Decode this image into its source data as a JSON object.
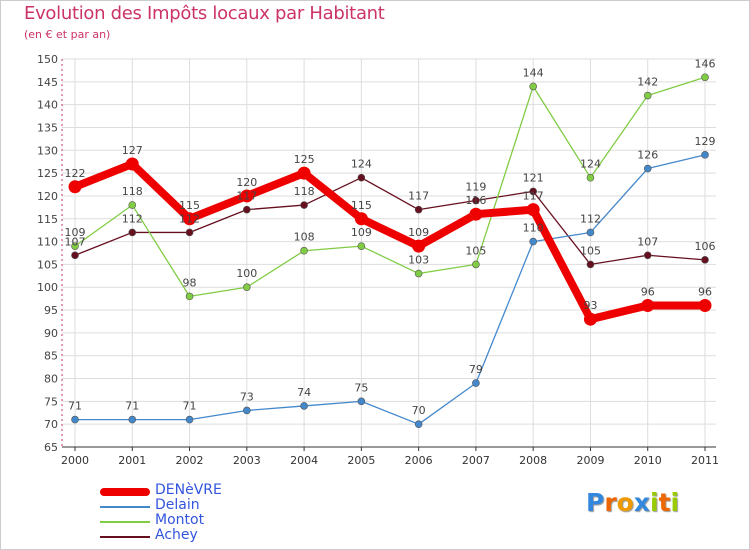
{
  "chart_data": {
    "type": "line",
    "title": "Evolution des Impôts locaux par Habitant",
    "subtitle": "(en € et par an)",
    "categories": [
      "2000",
      "2001",
      "2002",
      "2003",
      "2004",
      "2005",
      "2006",
      "2007",
      "2008",
      "2009",
      "2010",
      "2011"
    ],
    "ylim": [
      65,
      150
    ],
    "yticks": [
      65,
      70,
      75,
      80,
      85,
      90,
      95,
      100,
      105,
      110,
      115,
      120,
      125,
      130,
      135,
      140,
      145,
      150
    ],
    "grid": true,
    "legend_position": "bottom-left",
    "series": [
      {
        "name": "Achey",
        "color": "#660f1f",
        "values": [
          107,
          112,
          112,
          117,
          118,
          124,
          117,
          119,
          121,
          105,
          107,
          106
        ]
      },
      {
        "name": "Montot",
        "color": "#80cc44",
        "values": [
          109,
          118,
          98,
          100,
          108,
          109,
          103,
          105,
          144,
          124,
          142,
          146
        ]
      },
      {
        "name": "Delain",
        "color": "#4488cc",
        "values": [
          71,
          71,
          71,
          73,
          74,
          75,
          70,
          79,
          110,
          112,
          126,
          129
        ]
      },
      {
        "name": "DENèVRE",
        "color": "#ee0000",
        "values": [
          122,
          127,
          115,
          120,
          125,
          115,
          109,
          116,
          117,
          93,
          96,
          96
        ]
      }
    ],
    "legend": [
      "DENèVRE",
      "Delain",
      "Montot",
      "Achey"
    ]
  },
  "logo": {
    "text": "Proxiti",
    "letters": [
      "P",
      "r",
      "o",
      "x",
      "i",
      "t",
      "i"
    ],
    "colors": [
      "#3388dd",
      "#ee6600",
      "#ee9900",
      "#3388dd",
      "#99cc00",
      "#ee6600",
      "#99cc00"
    ]
  }
}
